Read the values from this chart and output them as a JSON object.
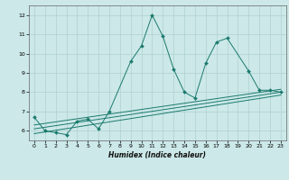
{
  "xlabel": "Humidex (Indice chaleur)",
  "xlim": [
    -0.5,
    23.5
  ],
  "ylim": [
    5.5,
    12.5
  ],
  "yticks": [
    6,
    7,
    8,
    9,
    10,
    11,
    12
  ],
  "xticks": [
    0,
    1,
    2,
    3,
    4,
    5,
    6,
    7,
    8,
    9,
    10,
    11,
    12,
    13,
    14,
    15,
    16,
    17,
    18,
    19,
    20,
    21,
    22,
    23
  ],
  "bg_color": "#cce8e8",
  "grid_color": "#b0d0d0",
  "line_color": "#1a7a6e",
  "series1_x": [
    0,
    1,
    2,
    3,
    4,
    5,
    6,
    7,
    9,
    10,
    11,
    12,
    13,
    14,
    15,
    16,
    17,
    18,
    20,
    21,
    22,
    23
  ],
  "series1_y": [
    6.7,
    6.0,
    5.9,
    5.8,
    6.5,
    6.6,
    6.1,
    7.0,
    9.6,
    10.4,
    12.0,
    10.9,
    9.2,
    8.0,
    7.7,
    9.5,
    10.6,
    10.8,
    9.1,
    8.1,
    8.1,
    8.0
  ],
  "series2_x": [
    0,
    23
  ],
  "series2_y": [
    6.3,
    8.15
  ],
  "series3_x": [
    0,
    23
  ],
  "series3_y": [
    6.1,
    8.0
  ],
  "series4_x": [
    0,
    23
  ],
  "series4_y": [
    5.85,
    7.85
  ]
}
